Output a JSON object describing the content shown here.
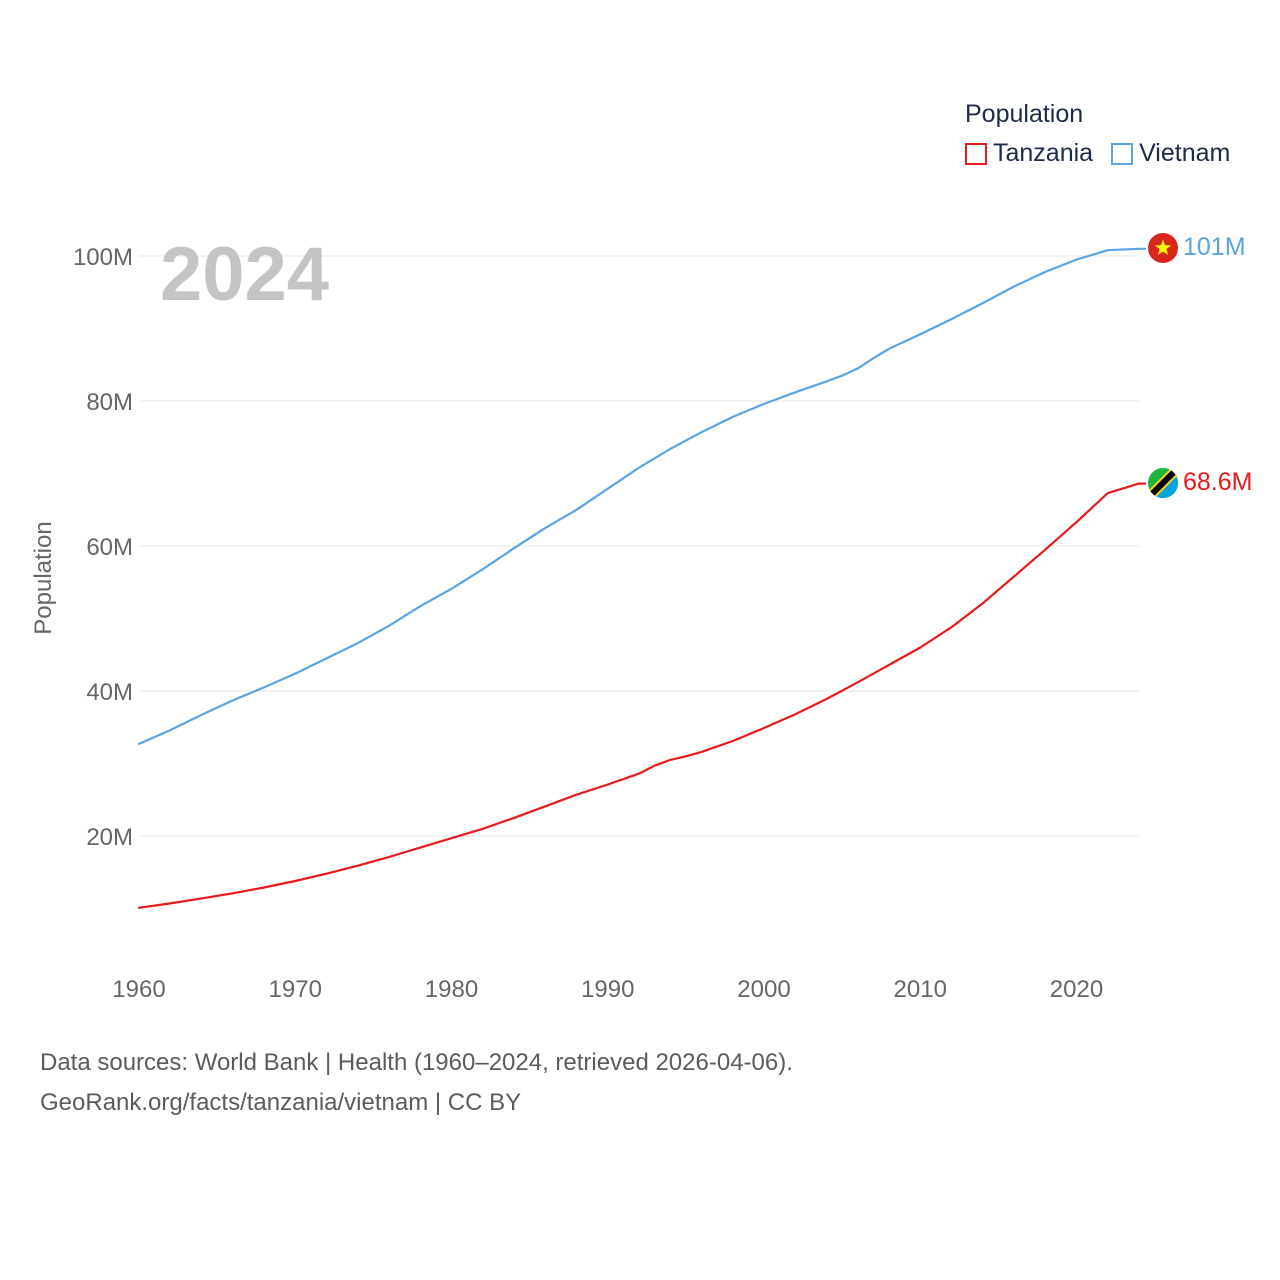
{
  "legend": {
    "title": "Population",
    "tanzania_label": "Tanzania",
    "vietnam_label": "Vietnam"
  },
  "colors": {
    "tanzania": "#e8191a",
    "vietnam": "#5aa4e4",
    "grid": "#e6e6e6",
    "axis_text": "#666666",
    "year_watermark": "#c4c4c4"
  },
  "footer": {
    "line1": "Data sources: World Bank | Health (1960–2024, retrieved 2026-04-06).",
    "line2": "GeoRank.org/facts/tanzania/vietnam | CC BY"
  },
  "chart_data": {
    "type": "line",
    "title": "Population",
    "year_label": "2024",
    "ylabel": "Population",
    "xlabel": "",
    "xlim": [
      1960,
      2024
    ],
    "ylim": [
      0,
      100000000
    ],
    "x_ticks": [
      1960,
      1970,
      1980,
      1990,
      2000,
      2010,
      2020
    ],
    "y_ticks": [
      {
        "value": 20000000,
        "label": "20M"
      },
      {
        "value": 40000000,
        "label": "40M"
      },
      {
        "value": 60000000,
        "label": "60M"
      },
      {
        "value": 80000000,
        "label": "80M"
      },
      {
        "value": 100000000,
        "label": "100M"
      }
    ],
    "legend_position": "top-right",
    "series": [
      {
        "name": "Tanzania",
        "color": "#e8191a",
        "end_label": "68.6M",
        "x": [
          1960,
          1962,
          1964,
          1966,
          1968,
          1970,
          1972,
          1974,
          1976,
          1978,
          1980,
          1982,
          1984,
          1986,
          1988,
          1990,
          1992,
          1993,
          1994,
          1995,
          1996,
          1998,
          2000,
          2002,
          2004,
          2006,
          2008,
          2010,
          2012,
          2014,
          2016,
          2018,
          2020,
          2022,
          2024
        ],
        "values": [
          10100000,
          10700000,
          11400000,
          12100000,
          12900000,
          13800000,
          14800000,
          15900000,
          17100000,
          18400000,
          19700000,
          21000000,
          22500000,
          24100000,
          25700000,
          27100000,
          28600000,
          29700000,
          30500000,
          31000000,
          31600000,
          33100000,
          34900000,
          36800000,
          38900000,
          41200000,
          43600000,
          46000000,
          48800000,
          52100000,
          55800000,
          59500000,
          63300000,
          67300000,
          68600000
        ]
      },
      {
        "name": "Vietnam",
        "color": "#5aa4e4",
        "end_label": "101M",
        "x": [
          1960,
          1962,
          1964,
          1966,
          1968,
          1970,
          1972,
          1974,
          1976,
          1978,
          1980,
          1982,
          1984,
          1986,
          1988,
          1990,
          1992,
          1994,
          1996,
          1998,
          2000,
          2002,
          2004,
          2005,
          2006,
          2007,
          2008,
          2010,
          2012,
          2014,
          2016,
          2018,
          2020,
          2022,
          2024
        ],
        "values": [
          32700000,
          34600000,
          36700000,
          38700000,
          40500000,
          42400000,
          44500000,
          46600000,
          49000000,
          51700000,
          54100000,
          56800000,
          59700000,
          62500000,
          65000000,
          67900000,
          70800000,
          73400000,
          75700000,
          77800000,
          79600000,
          81200000,
          82700000,
          83500000,
          84500000,
          85900000,
          87200000,
          89200000,
          91300000,
          93500000,
          95800000,
          97800000,
          99500000,
          100800000,
          101000000
        ]
      }
    ]
  }
}
